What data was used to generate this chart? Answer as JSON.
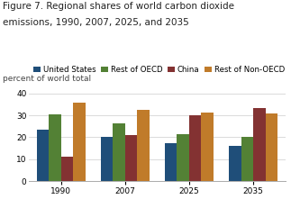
{
  "title_line1": "Figure 7. Regional shares of world carbon dioxide",
  "title_line2": "emissions, 1990, 2007, 2025, and 2035",
  "ylabel": "percent of world total",
  "years": [
    1990,
    2007,
    2025,
    2035
  ],
  "series": {
    "United States": [
      23.5,
      20.3,
      17.5,
      16.0
    ],
    "Rest of OECD": [
      30.5,
      26.2,
      21.5,
      20.0
    ],
    "China": [
      11.0,
      21.0,
      30.0,
      33.5
    ],
    "Rest of Non-OECD": [
      36.0,
      32.5,
      31.5,
      31.0
    ]
  },
  "colors": {
    "United States": "#1f4e79",
    "Rest of OECD": "#538135",
    "China": "#833232",
    "Rest of Non-OECD": "#c07b2a"
  },
  "ylim": [
    0,
    40
  ],
  "yticks": [
    0,
    10,
    20,
    30,
    40
  ],
  "title_fontsize": 7.5,
  "label_fontsize": 6.5,
  "legend_fontsize": 6.2,
  "tick_fontsize": 6.5,
  "background_color": "#ffffff"
}
